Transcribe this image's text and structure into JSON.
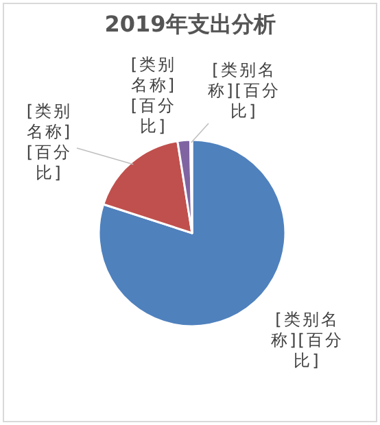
{
  "chart_data": {
    "type": "pie",
    "title": "2019年支出分析",
    "categories": [
      null,
      null,
      null,
      null
    ],
    "values": [
      80,
      17.5,
      2.2,
      0.3
    ],
    "colors": [
      "#4f81bd",
      "#c0504d",
      "#8064a2",
      "#b9acd6"
    ],
    "value_labels": [
      "[类别名称][百分比]",
      "[类别名称][百分比]",
      "[类别名称][百分比]",
      "[类别名称][百分比]"
    ]
  }
}
